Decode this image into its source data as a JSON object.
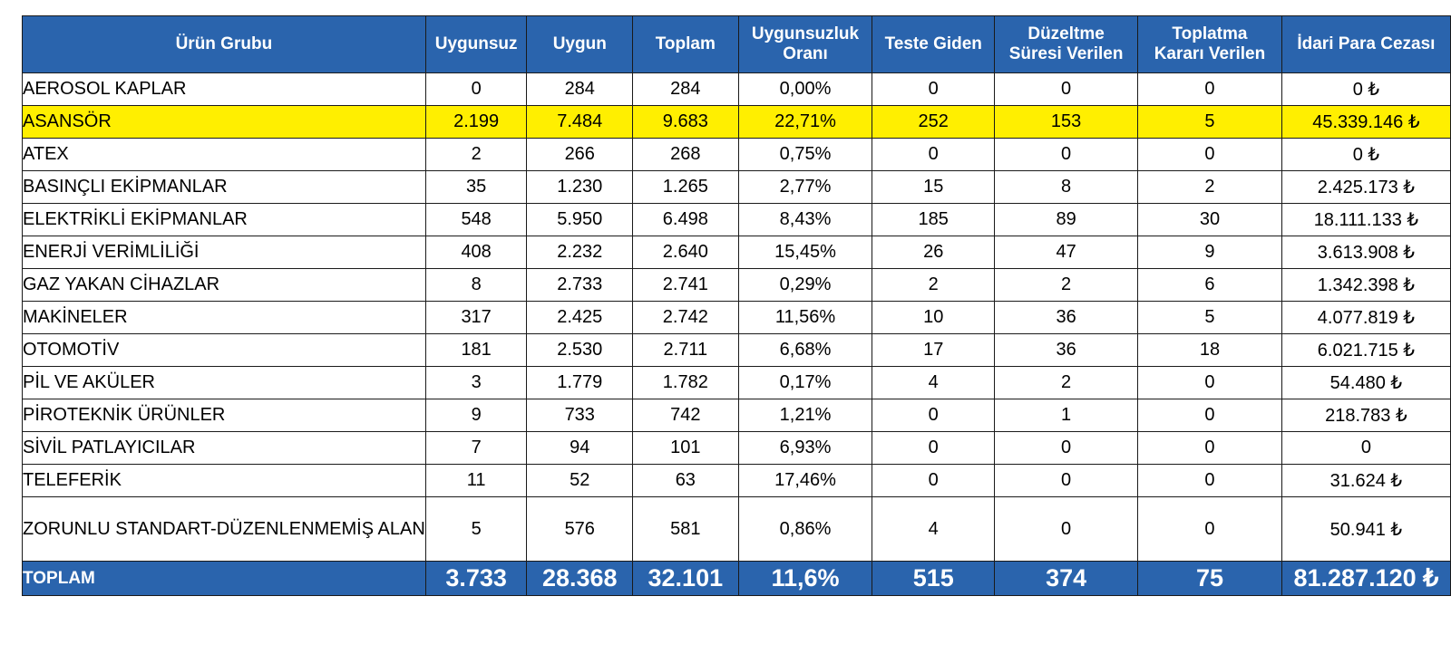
{
  "table": {
    "headers": [
      "Ürün Grubu",
      "Uygunsuz",
      "Uygun",
      "Toplam",
      "Uygunsuzluk Oranı",
      "Teste Giden",
      "Düzeltme Süresi Verilen",
      "Toplatma Kararı Verilen",
      "İdari Para Cezası"
    ],
    "rows": [
      [
        "AEROSOL KAPLAR",
        "0",
        "284",
        "284",
        "0,00%",
        "0",
        "0",
        "0",
        "0 ₺"
      ],
      [
        "ASANSÖR",
        "2.199",
        "7.484",
        "9.683",
        "22,71%",
        "252",
        "153",
        "5",
        "45.339.146 ₺"
      ],
      [
        "ATEX",
        "2",
        "266",
        "268",
        "0,75%",
        "0",
        "0",
        "0",
        "0 ₺"
      ],
      [
        "BASINÇLI EKİPMANLAR",
        "35",
        "1.230",
        "1.265",
        "2,77%",
        "15",
        "8",
        "2",
        "2.425.173 ₺"
      ],
      [
        "ELEKTRİKLİ EKİPMANLAR",
        "548",
        "5.950",
        "6.498",
        "8,43%",
        "185",
        "89",
        "30",
        "18.111.133 ₺"
      ],
      [
        "ENERJİ VERİMLİLİĞİ",
        "408",
        "2.232",
        "2.640",
        "15,45%",
        "26",
        "47",
        "9",
        "3.613.908 ₺"
      ],
      [
        "GAZ YAKAN CİHAZLAR",
        "8",
        "2.733",
        "2.741",
        "0,29%",
        "2",
        "2",
        "6",
        "1.342.398 ₺"
      ],
      [
        "MAKİNELER",
        "317",
        "2.425",
        "2.742",
        "11,56%",
        "10",
        "36",
        "5",
        "4.077.819 ₺"
      ],
      [
        "OTOMOTİV",
        "181",
        "2.530",
        "2.711",
        "6,68%",
        "17",
        "36",
        "18",
        "6.021.715 ₺"
      ],
      [
        "PİL VE AKÜLER",
        "3",
        "1.779",
        "1.782",
        "0,17%",
        "4",
        "2",
        "0",
        "54.480 ₺"
      ],
      [
        "PİROTEKNİK ÜRÜNLER",
        "9",
        "733",
        "742",
        "1,21%",
        "0",
        "1",
        "0",
        "218.783 ₺"
      ],
      [
        "SİVİL PATLAYICILAR",
        "7",
        "94",
        "101",
        "6,93%",
        "0",
        "0",
        "0",
        "0"
      ],
      [
        "TELEFERİK",
        "11",
        "52",
        "63",
        "17,46%",
        "0",
        "0",
        "0",
        "31.624 ₺"
      ],
      [
        "ZORUNLU STANDART-DÜZENLENMEMİŞ ALAN",
        "5",
        "576",
        "581",
        "0,86%",
        "4",
        "0",
        "0",
        "50.941 ₺"
      ]
    ],
    "highlighted_row": "ASANSÖR",
    "total": [
      "TOPLAM",
      "3.733",
      "28.368",
      "32.101",
      "11,6%",
      "515",
      "374",
      "75",
      "81.287.120 ₺"
    ]
  },
  "colors": {
    "header_bg": "#2a64ad",
    "header_text": "#ffffff",
    "highlight_bg": "#ffef00",
    "border": "#1a1a1a"
  }
}
